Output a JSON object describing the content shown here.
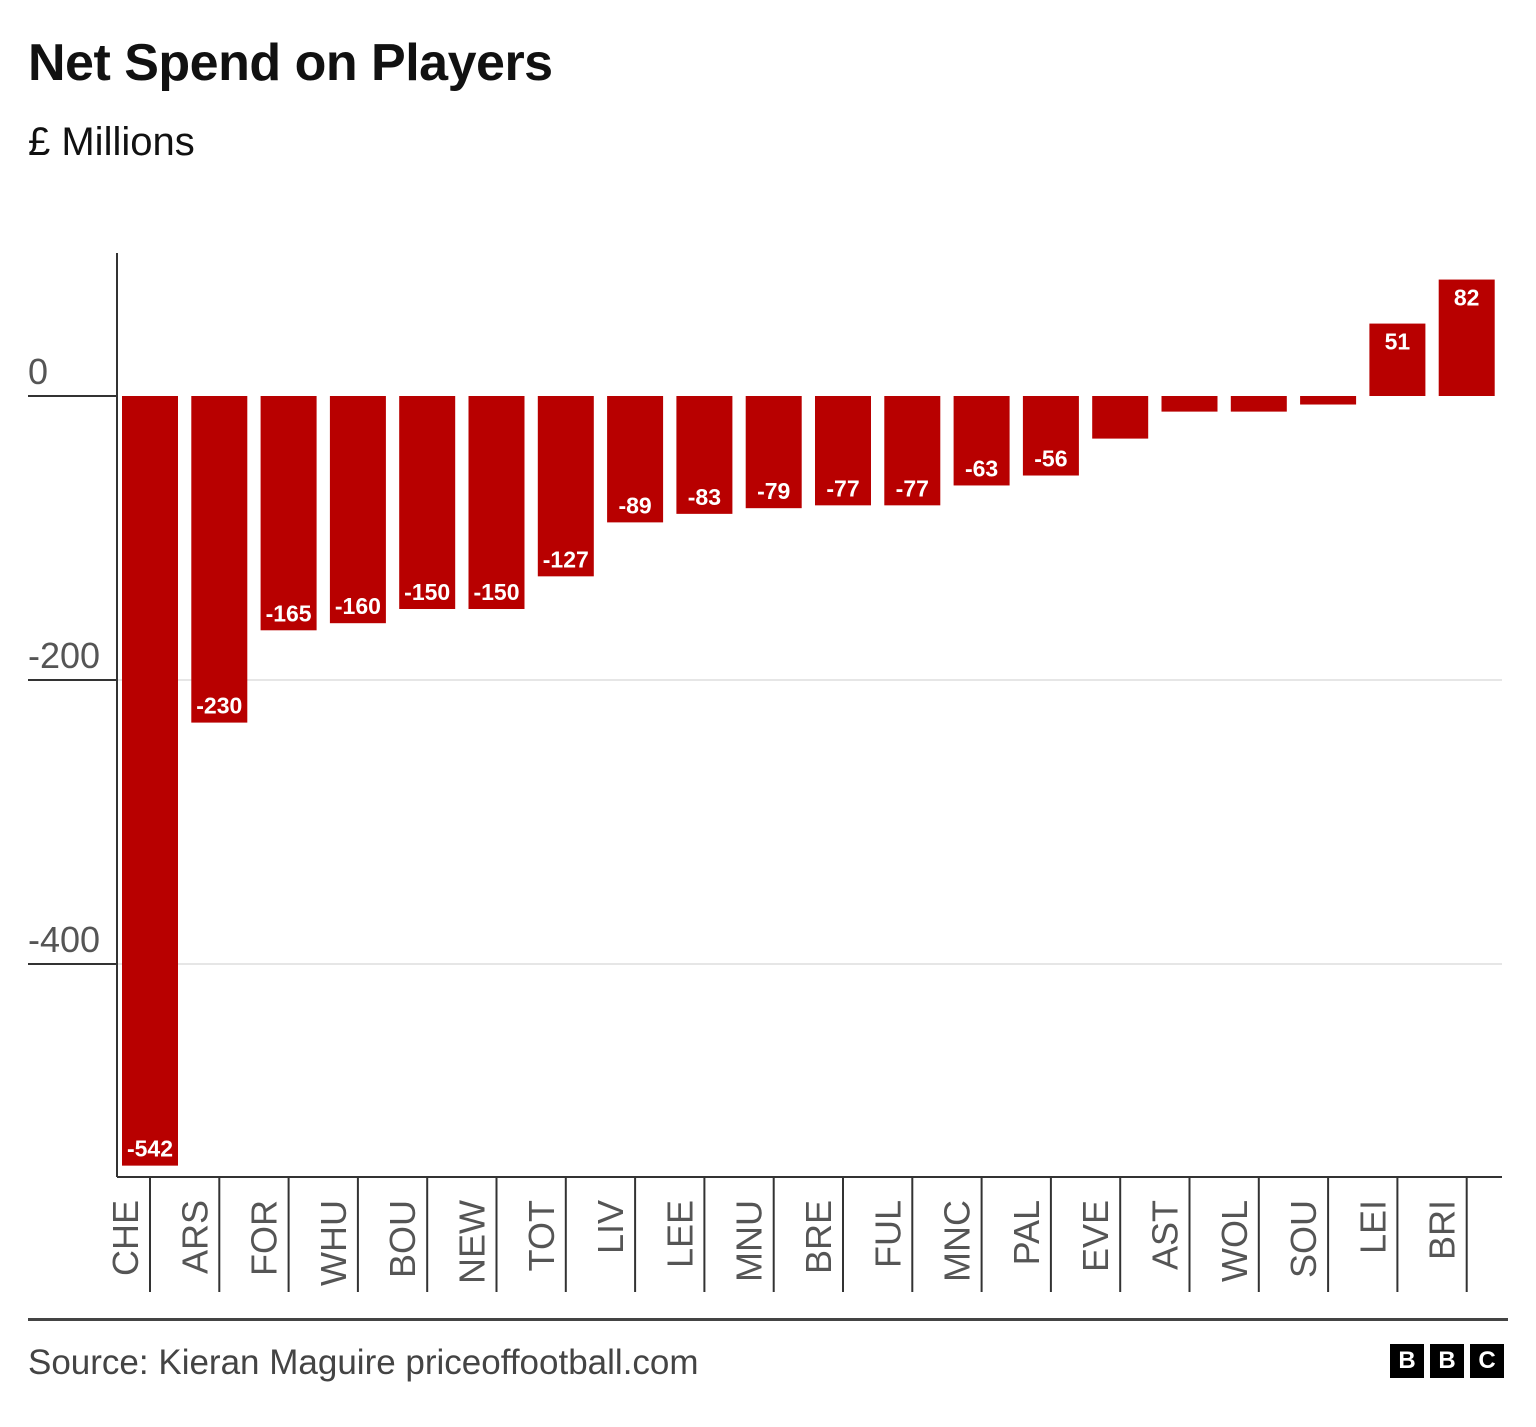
{
  "header": {
    "title": "Net Spend on Players",
    "subtitle": "£ Millions"
  },
  "footer": {
    "source": "Source: Kieran Maguire priceoffootball.com",
    "logo_letters": [
      "B",
      "B",
      "C"
    ]
  },
  "colors": {
    "bar": "#b80000",
    "gridline": "#e6e6e6",
    "axis": "#333333",
    "tick_text": "#555555",
    "label_text": "#ffffff"
  },
  "chart_data": {
    "type": "bar",
    "categories": [
      "CHE",
      "ARS",
      "FOR",
      "WHU",
      "BOU",
      "NEW",
      "TOT",
      "LIV",
      "LEE",
      "MNU",
      "BRE",
      "FUL",
      "MNC",
      "PAL",
      "EVE",
      "AST",
      "WOL",
      "SOU",
      "LEI",
      "BRI"
    ],
    "values": [
      -542,
      -230,
      -165,
      -160,
      -150,
      -150,
      -127,
      -89,
      -83,
      -79,
      -77,
      -77,
      -63,
      -56,
      -30,
      -11,
      -11,
      -6,
      51,
      82
    ],
    "data_labels": [
      "-542",
      "-230",
      "-165",
      "-160",
      "-150",
      "-150",
      "-127",
      "-89",
      "-83",
      "-79",
      "-77",
      "-77",
      "-63",
      "-56",
      "",
      "",
      "",
      "",
      "51",
      "82"
    ],
    "yticks": [
      0,
      -200,
      -400
    ],
    "ytick_labels": [
      "0",
      "-200",
      "-400"
    ],
    "ylim": [
      -550,
      100
    ],
    "grid": true,
    "title": "Net Spend on Players",
    "ylabel": "£ Millions",
    "xlabel": ""
  }
}
